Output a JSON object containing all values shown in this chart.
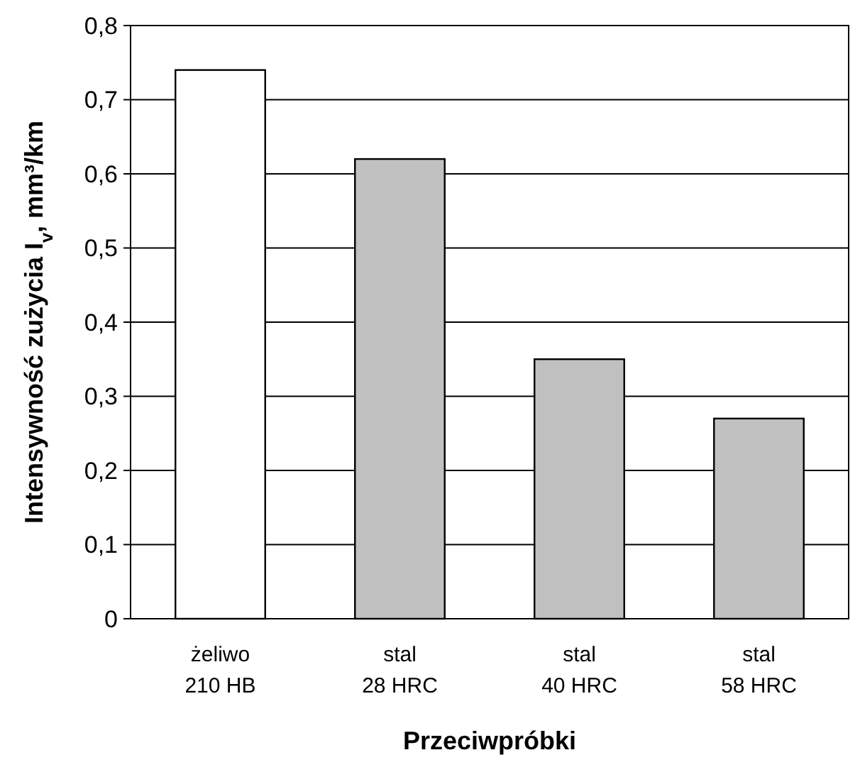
{
  "chart_data": {
    "type": "bar",
    "xlabel": "Przeciwpróbki",
    "ylabel": "Intensywność zużycia I$_{v}$, mm³/km",
    "categories": [
      "żeliwo 210 HB",
      "stal 28 HRC",
      "stal 40 HRC",
      "stal 58 HRC"
    ],
    "values": [
      0.74,
      0.62,
      0.35,
      0.27
    ],
    "colors": [
      "#ffffff",
      "#c0c0c0",
      "#c0c0c0",
      "#c0c0c0"
    ],
    "ylim": [
      0,
      0.8
    ],
    "yticks": [
      0,
      {
        "value": 0.1,
        "label": "0,1"
      },
      {
        "value": 0.2,
        "label": "0,2"
      },
      {
        "value": 0.3,
        "label": "0,3"
      },
      {
        "value": 0.4,
        "label": "0,4"
      },
      {
        "value": 0.5,
        "label": "0,5"
      },
      {
        "value": 0.6,
        "label": "0,6"
      },
      {
        "value": 0.7,
        "label": "0,7"
      },
      {
        "value": 0.8,
        "label": "0,8"
      }
    ],
    "grid": "y"
  }
}
